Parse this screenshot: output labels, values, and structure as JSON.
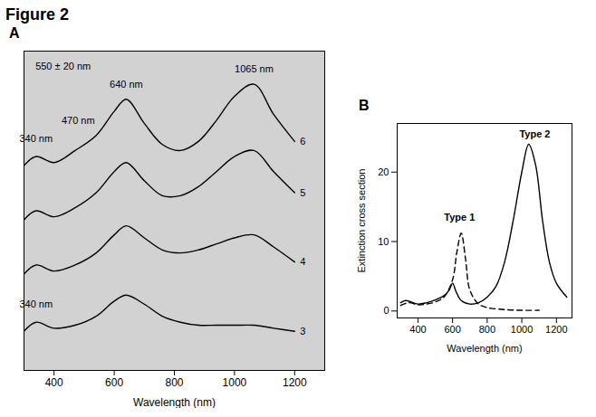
{
  "title": "Figure 2",
  "chart_data": [
    {
      "type": "line",
      "panel": "A",
      "x_label": "Wavelength (nm)",
      "x": [
        300,
        340,
        400,
        470,
        540,
        600,
        640,
        700,
        760,
        820,
        880,
        940,
        1000,
        1065,
        1130,
        1200
      ],
      "series": [
        {
          "name": "3",
          "color": "#000000",
          "line_style": "solid",
          "values": [
            1.3,
            1.6,
            1.4,
            1.5,
            1.8,
            2.3,
            2.5,
            2.2,
            1.8,
            1.6,
            1.5,
            1.5,
            1.5,
            1.5,
            1.4,
            1.3
          ]
        },
        {
          "name": "4",
          "color": "#000000",
          "line_style": "solid",
          "values": [
            3.2,
            3.5,
            3.3,
            3.5,
            3.9,
            4.5,
            4.8,
            4.4,
            4.0,
            3.9,
            4.0,
            4.2,
            4.4,
            4.5,
            4.1,
            3.6
          ]
        },
        {
          "name": "5",
          "color": "#000000",
          "line_style": "solid",
          "values": [
            5.0,
            5.3,
            5.1,
            5.4,
            5.9,
            6.6,
            6.9,
            6.3,
            5.8,
            5.8,
            6.1,
            6.6,
            7.1,
            7.3,
            6.6,
            5.9
          ]
        },
        {
          "name": "6",
          "color": "#000000",
          "line_style": "solid",
          "values": [
            6.8,
            7.1,
            6.9,
            7.3,
            7.8,
            8.6,
            9.0,
            8.2,
            7.5,
            7.3,
            7.6,
            8.3,
            9.1,
            9.5,
            8.5,
            7.6
          ]
        }
      ],
      "xlim": [
        300,
        1300
      ],
      "xticks": [
        400,
        600,
        800,
        1000,
        1200
      ],
      "ylim": [
        0,
        10.6
      ],
      "tick_labels": "x",
      "annotations": [
        {
          "text": "550 ± 20 nm",
          "x": 430,
          "y": 10.1
        },
        {
          "text": "340 nm",
          "x": 340,
          "y": 7.7
        },
        {
          "text": "470 nm",
          "x": 480,
          "y": 8.3
        },
        {
          "text": "640 nm",
          "x": 640,
          "y": 9.5
        },
        {
          "text": "1065 nm",
          "x": 1065,
          "y": 10.0
        },
        {
          "text": "340 nm",
          "x": 340,
          "y": 2.2
        }
      ]
    },
    {
      "type": "line",
      "panel": "B",
      "x_label": "Wavelength (nm)",
      "y_label": "Extinction cross section",
      "series": [
        {
          "name": "Type 1",
          "color": "#000000",
          "line_style": "dashed",
          "x": [
            300,
            350,
            400,
            450,
            500,
            550,
            600,
            625,
            650,
            675,
            700,
            750,
            800,
            900,
            1000,
            1100
          ],
          "values": [
            0.8,
            1.2,
            0.9,
            1.0,
            1.3,
            2.0,
            4.5,
            8.5,
            11.2,
            7.5,
            3.0,
            1.0,
            0.5,
            0.2,
            0.1,
            0.1
          ],
          "label_at": {
            "x": 640,
            "y": 13.5
          }
        },
        {
          "name": "Type 2",
          "color": "#000000",
          "line_style": "solid",
          "x": [
            300,
            330,
            400,
            450,
            500,
            550,
            580,
            600,
            620,
            650,
            700,
            750,
            800,
            850,
            900,
            950,
            1000,
            1040,
            1080,
            1120,
            1160,
            1200,
            1260
          ],
          "values": [
            1.2,
            1.5,
            1.0,
            1.2,
            1.6,
            2.2,
            3.0,
            4.0,
            2.8,
            1.5,
            1.0,
            1.2,
            2.0,
            3.5,
            7.0,
            13.0,
            20.0,
            24.0,
            21.0,
            13.0,
            7.0,
            4.0,
            2.0
          ],
          "label_at": {
            "x": 1075,
            "y": 25.5
          }
        }
      ],
      "xlim": [
        280,
        1290
      ],
      "xticks": [
        400,
        600,
        800,
        1000,
        1200
      ],
      "ylim": [
        -1,
        27
      ],
      "yticks": [
        0,
        10,
        20
      ]
    }
  ]
}
